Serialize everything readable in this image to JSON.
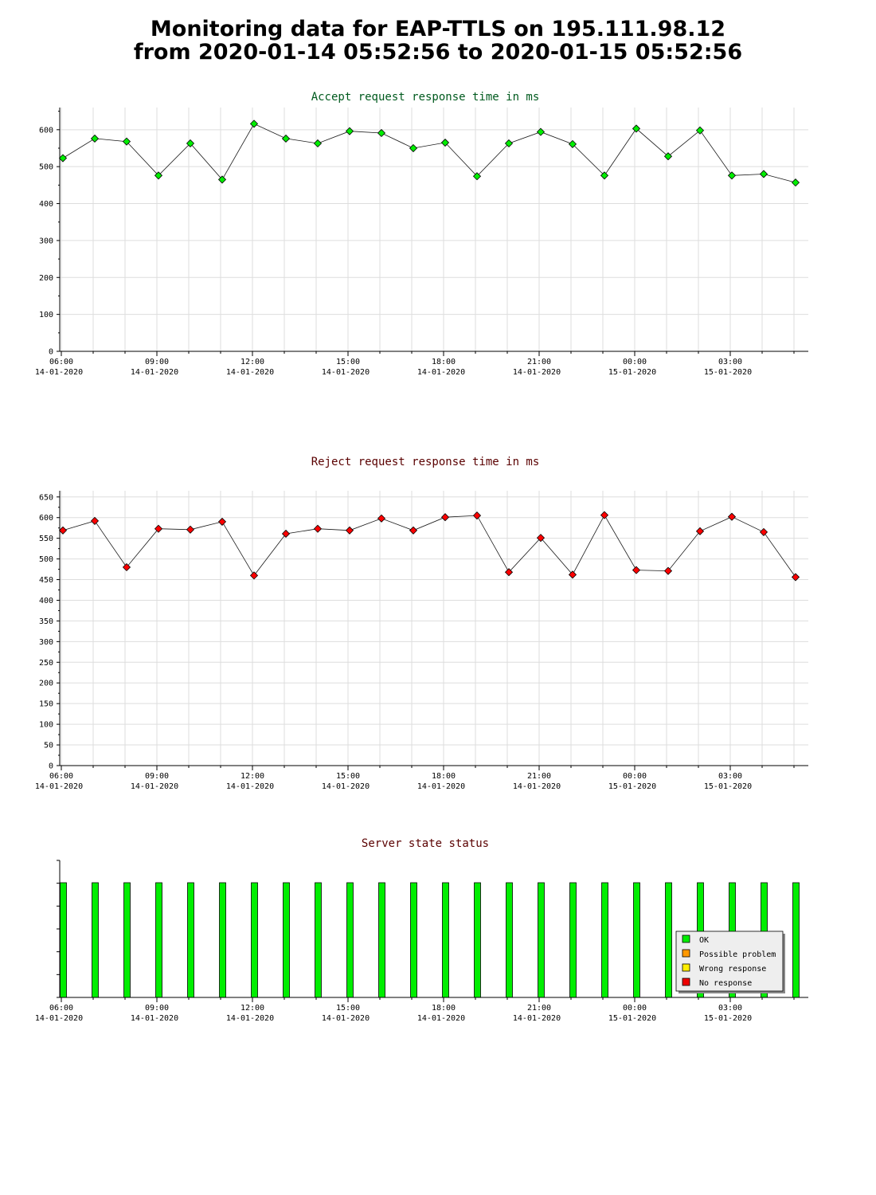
{
  "page": {
    "title_line1": "Monitoring data for EAP-TTLS on 195.111.98.12",
    "title_line2": "from 2020-01-14 05:52:56 to 2020-01-15 05:52:56"
  },
  "colors": {
    "accept_point": "#00ee00",
    "accept_title": "#005a1e",
    "reject_point": "#ff0000",
    "reject_title": "#5a0000",
    "status_title": "#5a0000",
    "ok": "#00ee00",
    "possible_problem": "#ff9900",
    "wrong_response": "#ffee00",
    "no_response": "#ee0000",
    "grid": "#dddddd"
  },
  "chart_data": [
    {
      "type": "line",
      "title": "Accept request response time in ms",
      "x": [
        "05:52",
        "06:52",
        "07:52",
        "08:52",
        "09:52",
        "10:52",
        "11:52",
        "12:52",
        "13:52",
        "14:52",
        "15:52",
        "16:52",
        "17:52",
        "18:52",
        "19:52",
        "20:52",
        "21:52",
        "22:52",
        "23:52",
        "00:52",
        "01:52",
        "02:52",
        "03:52",
        "04:52"
      ],
      "values": [
        523,
        576,
        568,
        476,
        563,
        465,
        616,
        576,
        563,
        596,
        591,
        550,
        565,
        474,
        563,
        594,
        561,
        476,
        603,
        528,
        598,
        476,
        480,
        457
      ],
      "ylim": [
        0,
        660
      ],
      "yticks": [
        "0",
        "100",
        "200",
        "300",
        "400",
        "500",
        "600"
      ],
      "xticks": [
        {
          "time": "06:00",
          "date": "14-01-2020"
        },
        {
          "time": "09:00",
          "date": "14-01-2020"
        },
        {
          "time": "12:00",
          "date": "14-01-2020"
        },
        {
          "time": "15:00",
          "date": "14-01-2020"
        },
        {
          "time": "18:00",
          "date": "14-01-2020"
        },
        {
          "time": "21:00",
          "date": "14-01-2020"
        },
        {
          "time": "00:00",
          "date": "15-01-2020"
        },
        {
          "time": "03:00",
          "date": "15-01-2020"
        }
      ],
      "grid": true
    },
    {
      "type": "line",
      "title": "Reject request response time in ms",
      "x": [
        "05:52",
        "06:52",
        "07:52",
        "08:52",
        "09:52",
        "10:52",
        "11:52",
        "12:52",
        "13:52",
        "14:52",
        "15:52",
        "16:52",
        "17:52",
        "18:52",
        "19:52",
        "20:52",
        "21:52",
        "22:52",
        "23:52",
        "00:52",
        "01:52",
        "02:52",
        "03:52",
        "04:52"
      ],
      "values": [
        569,
        592,
        480,
        573,
        571,
        590,
        460,
        561,
        573,
        569,
        598,
        569,
        601,
        605,
        468,
        551,
        462,
        606,
        473,
        471,
        567,
        602,
        565,
        456
      ],
      "ylim": [
        0,
        665
      ],
      "yticks": [
        "0",
        "50",
        "100",
        "150",
        "200",
        "250",
        "300",
        "350",
        "400",
        "450",
        "500",
        "550",
        "600",
        "650"
      ],
      "xticks": [
        {
          "time": "06:00",
          "date": "14-01-2020"
        },
        {
          "time": "09:00",
          "date": "14-01-2020"
        },
        {
          "time": "12:00",
          "date": "14-01-2020"
        },
        {
          "time": "15:00",
          "date": "14-01-2020"
        },
        {
          "time": "18:00",
          "date": "14-01-2020"
        },
        {
          "time": "21:00",
          "date": "14-01-2020"
        },
        {
          "time": "00:00",
          "date": "15-01-2020"
        },
        {
          "time": "03:00",
          "date": "15-01-2020"
        }
      ],
      "grid": true
    },
    {
      "type": "bar",
      "title": "Server state status",
      "x": [
        "05:52",
        "06:52",
        "07:52",
        "08:52",
        "09:52",
        "10:52",
        "11:52",
        "12:52",
        "13:52",
        "14:52",
        "15:52",
        "16:52",
        "17:52",
        "18:52",
        "19:52",
        "20:52",
        "21:52",
        "22:52",
        "23:52",
        "00:52",
        "01:52",
        "02:52",
        "03:52",
        "04:52"
      ],
      "states": [
        "OK",
        "OK",
        "OK",
        "OK",
        "OK",
        "OK",
        "OK",
        "OK",
        "OK",
        "OK",
        "OK",
        "OK",
        "OK",
        "OK",
        "OK",
        "OK",
        "OK",
        "OK",
        "OK",
        "OK",
        "OK",
        "OK",
        "OK",
        "OK"
      ],
      "legend": [
        "OK",
        "Possible problem",
        "Wrong response",
        "No response"
      ],
      "legend_position": "bottom-right",
      "xticks": [
        {
          "time": "06:00",
          "date": "14-01-2020"
        },
        {
          "time": "09:00",
          "date": "14-01-2020"
        },
        {
          "time": "12:00",
          "date": "14-01-2020"
        },
        {
          "time": "15:00",
          "date": "14-01-2020"
        },
        {
          "time": "18:00",
          "date": "14-01-2020"
        },
        {
          "time": "21:00",
          "date": "14-01-2020"
        },
        {
          "time": "00:00",
          "date": "15-01-2020"
        },
        {
          "time": "03:00",
          "date": "15-01-2020"
        }
      ],
      "grid": false
    }
  ]
}
